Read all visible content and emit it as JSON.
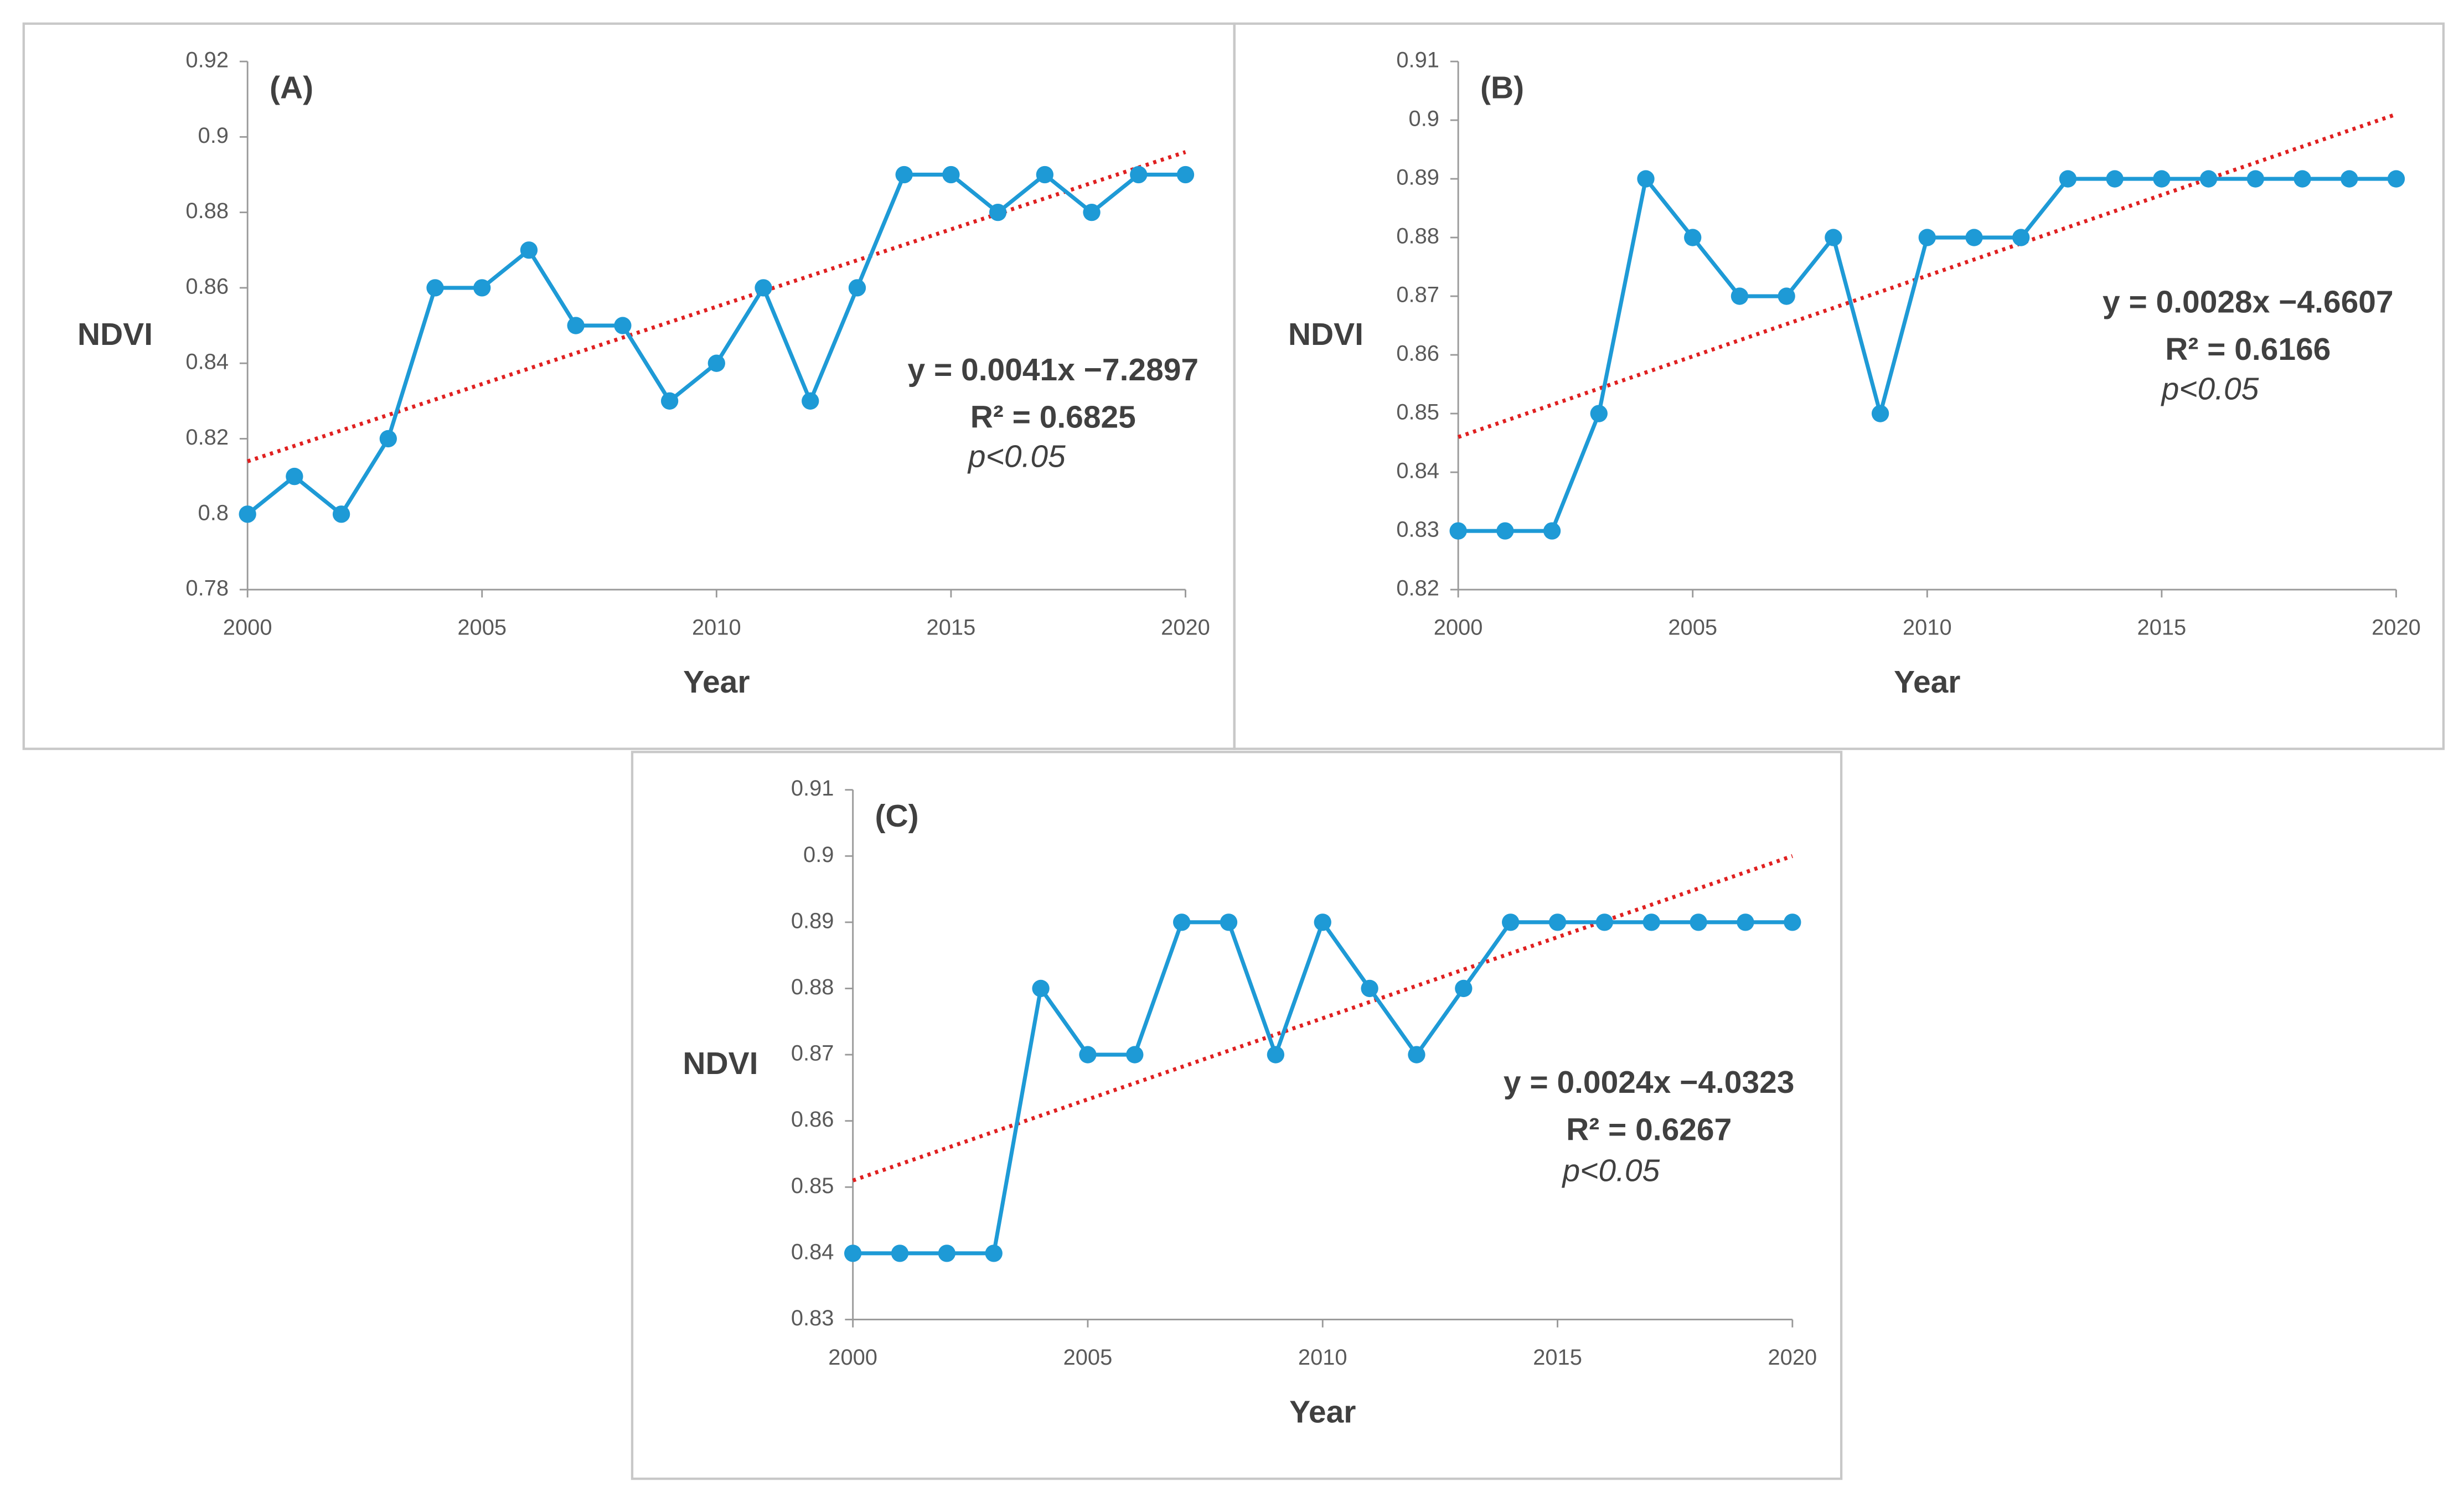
{
  "chart_data": [
    {
      "type": "line",
      "panel_label": "(A)",
      "ylabel": "NDVI",
      "xlabel": "Year",
      "x": [
        2000,
        2001,
        2002,
        2003,
        2004,
        2005,
        2006,
        2007,
        2008,
        2009,
        2010,
        2011,
        2012,
        2013,
        2014,
        2015,
        2016,
        2017,
        2018,
        2019,
        2020
      ],
      "values": [
        0.8,
        0.81,
        0.8,
        0.82,
        0.86,
        0.86,
        0.87,
        0.85,
        0.85,
        0.83,
        0.84,
        0.86,
        0.83,
        0.86,
        0.89,
        0.89,
        0.88,
        0.89,
        0.88,
        0.89,
        0.89
      ],
      "color": "#1e9ad6",
      "xlim": [
        2000,
        2020
      ],
      "xticks": [
        2000,
        2005,
        2010,
        2015,
        2020
      ],
      "ylim": [
        0.78,
        0.92
      ],
      "yticks": [
        0.78,
        0.8,
        0.82,
        0.84,
        0.86,
        0.88,
        0.9,
        0.92
      ],
      "trendline": {
        "x": [
          2000,
          2020
        ],
        "values": [
          0.814,
          0.896
        ],
        "color": "#e02020"
      },
      "equation": "y = 0.0041x −7.2897",
      "r_squared": "R² = 0.6825",
      "p_value": "p<0.05"
    },
    {
      "type": "line",
      "panel_label": "(B)",
      "ylabel": "NDVI",
      "xlabel": "Year",
      "x": [
        2000,
        2001,
        2002,
        2003,
        2004,
        2005,
        2006,
        2007,
        2008,
        2009,
        2010,
        2011,
        2012,
        2013,
        2014,
        2015,
        2016,
        2017,
        2018,
        2019,
        2020
      ],
      "values": [
        0.83,
        0.83,
        0.83,
        0.85,
        0.89,
        0.88,
        0.87,
        0.87,
        0.88,
        0.85,
        0.88,
        0.88,
        0.88,
        0.89,
        0.89,
        0.89,
        0.89,
        0.89,
        0.89,
        0.89,
        0.89
      ],
      "color": "#1e9ad6",
      "xlim": [
        2000,
        2020
      ],
      "xticks": [
        2000,
        2005,
        2010,
        2015,
        2020
      ],
      "ylim": [
        0.82,
        0.91
      ],
      "yticks": [
        0.82,
        0.83,
        0.84,
        0.85,
        0.86,
        0.87,
        0.88,
        0.89,
        0.9,
        0.91
      ],
      "trendline": {
        "x": [
          2000,
          2020
        ],
        "values": [
          0.846,
          0.901
        ],
        "color": "#e02020"
      },
      "equation": "y = 0.0028x −4.6607",
      "r_squared": "R² = 0.6166",
      "p_value": "p<0.05"
    },
    {
      "type": "line",
      "panel_label": "(C)",
      "ylabel": "NDVI",
      "xlabel": "Year",
      "x": [
        2000,
        2001,
        2002,
        2003,
        2004,
        2005,
        2006,
        2007,
        2008,
        2009,
        2010,
        2011,
        2012,
        2013,
        2014,
        2015,
        2016,
        2017,
        2018,
        2019,
        2020
      ],
      "values": [
        0.84,
        0.84,
        0.84,
        0.84,
        0.88,
        0.87,
        0.87,
        0.89,
        0.89,
        0.87,
        0.89,
        0.88,
        0.87,
        0.88,
        0.89,
        0.89,
        0.89,
        0.89,
        0.89,
        0.89,
        0.89
      ],
      "color": "#1e9ad6",
      "xlim": [
        2000,
        2020
      ],
      "xticks": [
        2000,
        2005,
        2010,
        2015,
        2020
      ],
      "ylim": [
        0.83,
        0.91
      ],
      "yticks": [
        0.83,
        0.84,
        0.85,
        0.86,
        0.87,
        0.88,
        0.89,
        0.9,
        0.91
      ],
      "trendline": {
        "x": [
          2000,
          2020
        ],
        "values": [
          0.851,
          0.9
        ],
        "color": "#e02020"
      },
      "equation": "y = 0.0024x −4.0323",
      "r_squared": "R² = 0.6267",
      "p_value": "p<0.05"
    }
  ]
}
